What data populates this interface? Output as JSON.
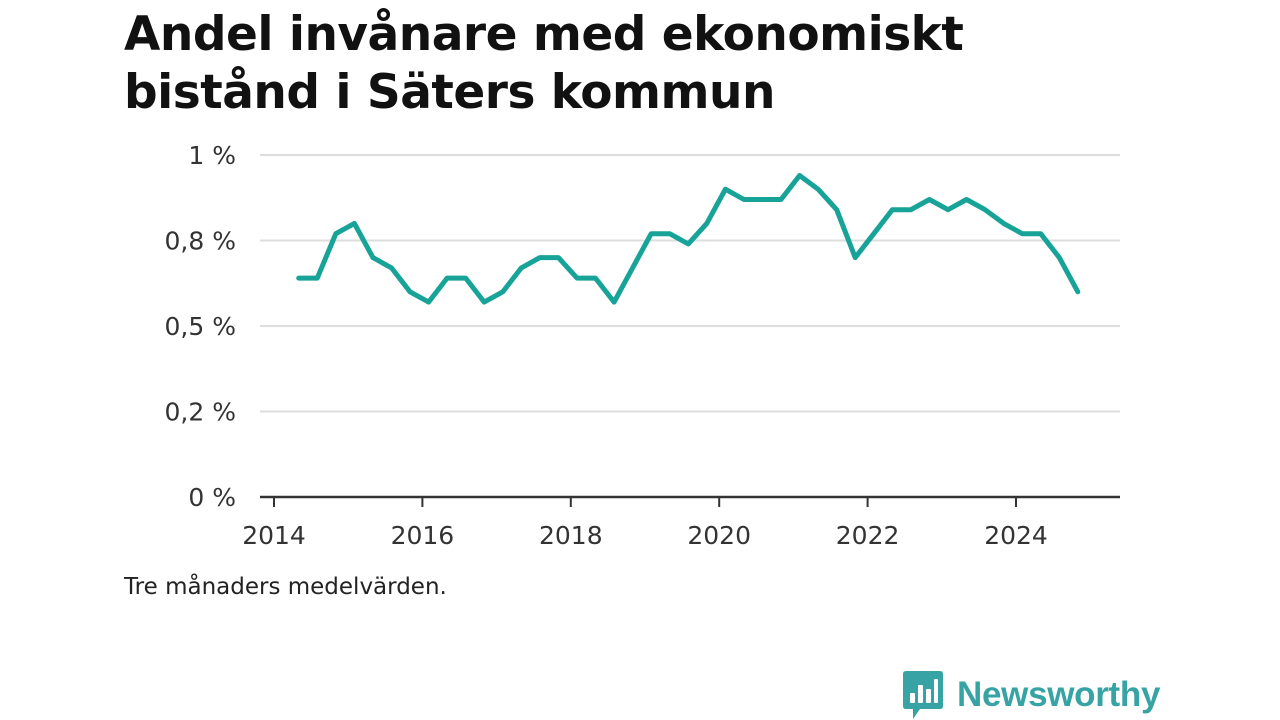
{
  "header": {
    "title_line1": "Andel invånare med ekonomiskt",
    "title_line2": "bistånd i Säters kommun"
  },
  "footnote": "Tre månaders medelvärden.",
  "brand": {
    "name": "Newsworthy",
    "icon": "bar-chart-speech-bubble-icon",
    "color": "#38a3a5"
  },
  "chart_data": {
    "type": "line",
    "title": "Andel invånare med ekonomiskt bistånd i Säters kommun",
    "xlabel": "",
    "ylabel": "",
    "y_ticks": [
      0,
      0.25,
      0.5,
      0.75,
      1.0
    ],
    "y_tick_labels": [
      "0 %",
      "0,2 %",
      "0,5 %",
      "0,8 %",
      "1 %"
    ],
    "x_ticks": [
      2014,
      2016,
      2018,
      2020,
      2022,
      2024
    ],
    "x_tick_labels": [
      "2014",
      "2016",
      "2018",
      "2020",
      "2022",
      "2024"
    ],
    "ylim": [
      0,
      1.0
    ],
    "xlim": [
      2014,
      2025.4
    ],
    "grid": "horizontal",
    "color": "#17a398",
    "series": [
      {
        "name": "",
        "x": [
          "2014-05",
          "2014-08",
          "2014-11",
          "2015-02",
          "2015-05",
          "2015-08",
          "2015-11",
          "2016-02",
          "2016-05",
          "2016-08",
          "2016-11",
          "2017-02",
          "2017-05",
          "2017-08",
          "2017-11",
          "2018-02",
          "2018-05",
          "2018-08",
          "2018-11",
          "2019-02",
          "2019-05",
          "2019-08",
          "2019-11",
          "2020-02",
          "2020-05",
          "2020-08",
          "2020-11",
          "2021-02",
          "2021-05",
          "2021-08",
          "2021-11",
          "2022-02",
          "2022-05",
          "2022-08",
          "2022-11",
          "2023-02",
          "2023-05",
          "2023-08",
          "2023-11",
          "2024-02",
          "2024-05",
          "2024-08",
          "2024-11"
        ],
        "values": [
          0.64,
          0.64,
          0.77,
          0.8,
          0.7,
          0.67,
          0.6,
          0.57,
          0.64,
          0.64,
          0.57,
          0.6,
          0.67,
          0.7,
          0.7,
          0.64,
          0.64,
          0.57,
          0.67,
          0.77,
          0.77,
          0.74,
          0.8,
          0.9,
          0.87,
          0.87,
          0.87,
          0.94,
          0.9,
          0.84,
          0.7,
          0.77,
          0.84,
          0.84,
          0.87,
          0.84,
          0.87,
          0.84,
          0.8,
          0.77,
          0.77,
          0.7,
          0.6
        ]
      }
    ]
  }
}
